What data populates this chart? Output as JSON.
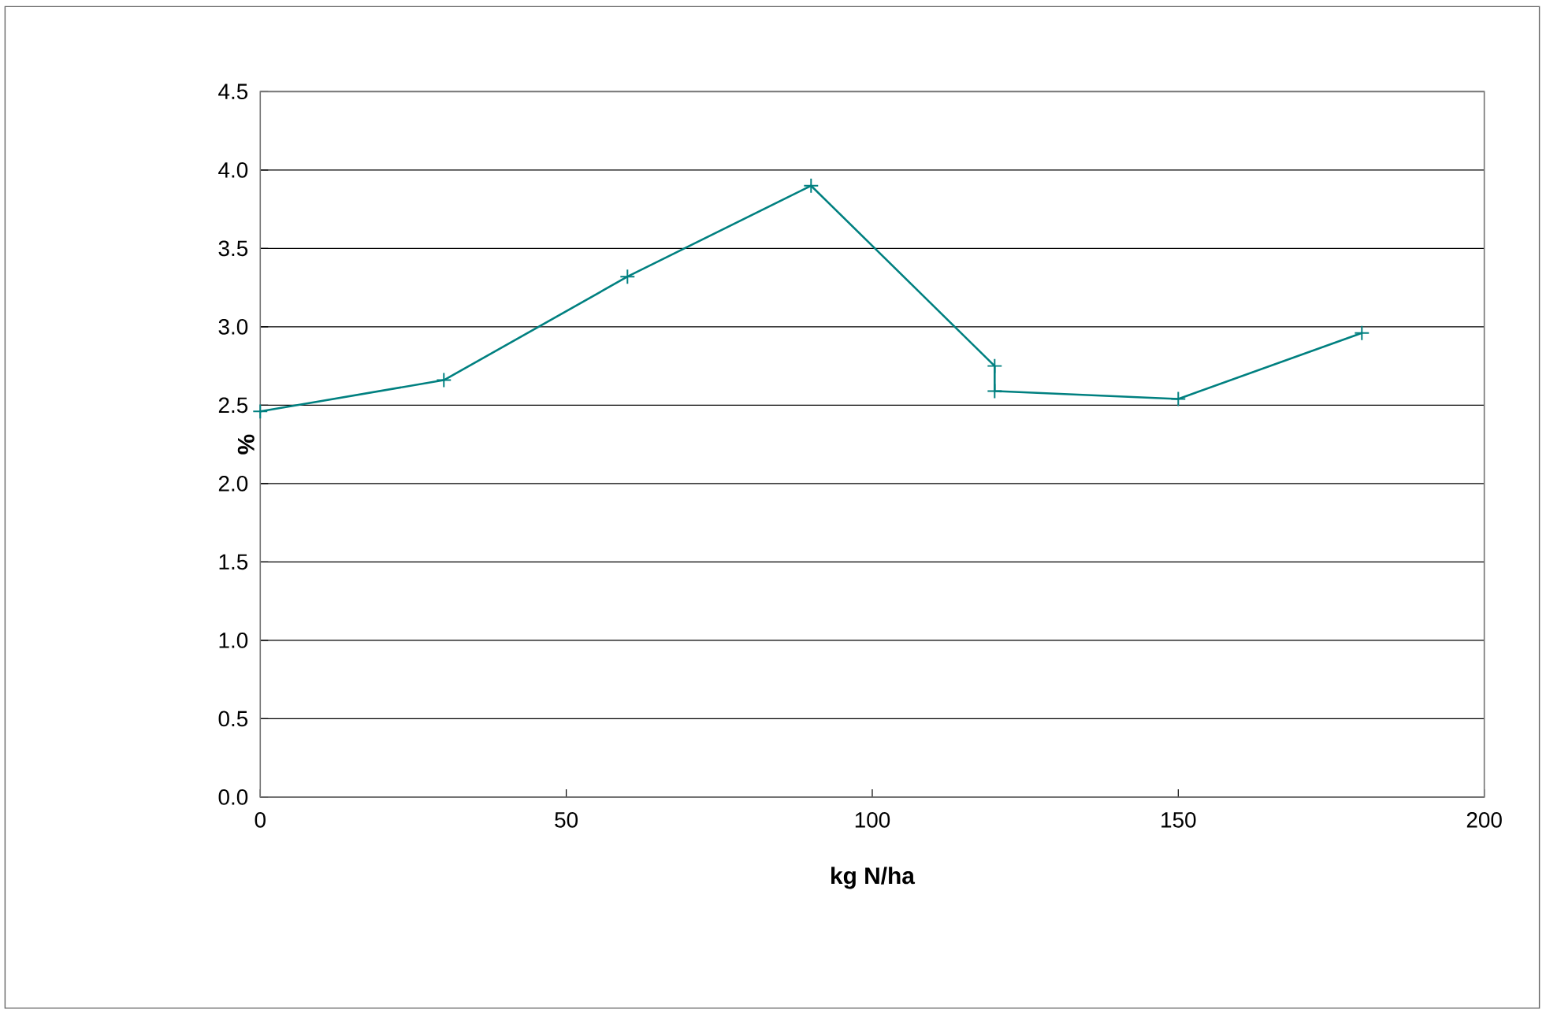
{
  "chart_data": {
    "type": "line",
    "xlabel": "kg N/ha",
    "ylabel": "%",
    "x": [
      0,
      30,
      60,
      90,
      120,
      120,
      150,
      180
    ],
    "series": [
      {
        "color": "#008080",
        "values": [
          2.46,
          2.66,
          3.32,
          3.9,
          2.75,
          2.59,
          2.54,
          2.96
        ]
      }
    ],
    "xlim": [
      0,
      200
    ],
    "xticks": [
      0,
      50,
      100,
      150,
      200
    ],
    "ylim": [
      0,
      4.5
    ],
    "yticks": [
      {
        "value": 0,
        "label": "0.0"
      },
      {
        "value": 0.5,
        "label": "0.5"
      },
      {
        "value": 1,
        "label": "1.0"
      },
      {
        "value": 1.5,
        "label": "1.5"
      },
      {
        "value": 2,
        "label": "2.0"
      },
      {
        "value": 2.5,
        "label": "2.5"
      },
      {
        "value": 3,
        "label": "3.0"
      },
      {
        "value": 3.5,
        "label": "3.5"
      },
      {
        "value": 4,
        "label": "4.0"
      },
      {
        "value": 4.5,
        "label": "4.5"
      }
    ],
    "grid": "y",
    "marker": "cross",
    "line_style": "solid"
  }
}
